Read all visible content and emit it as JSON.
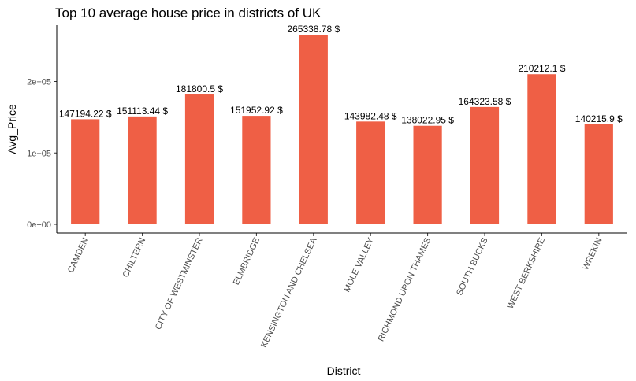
{
  "chart_data": {
    "type": "bar",
    "title": "Top 10 average house price in districts of UK",
    "xlabel": "District",
    "ylabel": "Avg_Price",
    "categories": [
      "CAMDEN",
      "CHILTERN",
      "CITY OF WESTMINSTER",
      "ELMBRIDGE",
      "KENSINGTON AND CHELSEA",
      "MOLE VALLEY",
      "RICHMOND UPON THAMES",
      "SOUTH BUCKS",
      "WEST BERKSHIRE",
      "WREKIN"
    ],
    "values": [
      147194.22,
      151113.44,
      181800.5,
      151952.92,
      265338.78,
      143982.48,
      138022.95,
      164323.58,
      210212.1,
      140215.9
    ],
    "data_labels": [
      "147194.22 $",
      "151113.44 $",
      "181800.5 $",
      "151952.92 $",
      "265338.78 $",
      "143982.48 $",
      "138022.95 $",
      "164323.58 $",
      "210212.1 $",
      "140215.9 $"
    ],
    "yticks": [
      0,
      100000,
      200000
    ],
    "ytick_labels": [
      "0e+00",
      "1e+05",
      "2e+05"
    ],
    "ylim": [
      0,
      280000
    ],
    "bar_color": "#EF5F45",
    "grid": false,
    "legend": "none"
  }
}
